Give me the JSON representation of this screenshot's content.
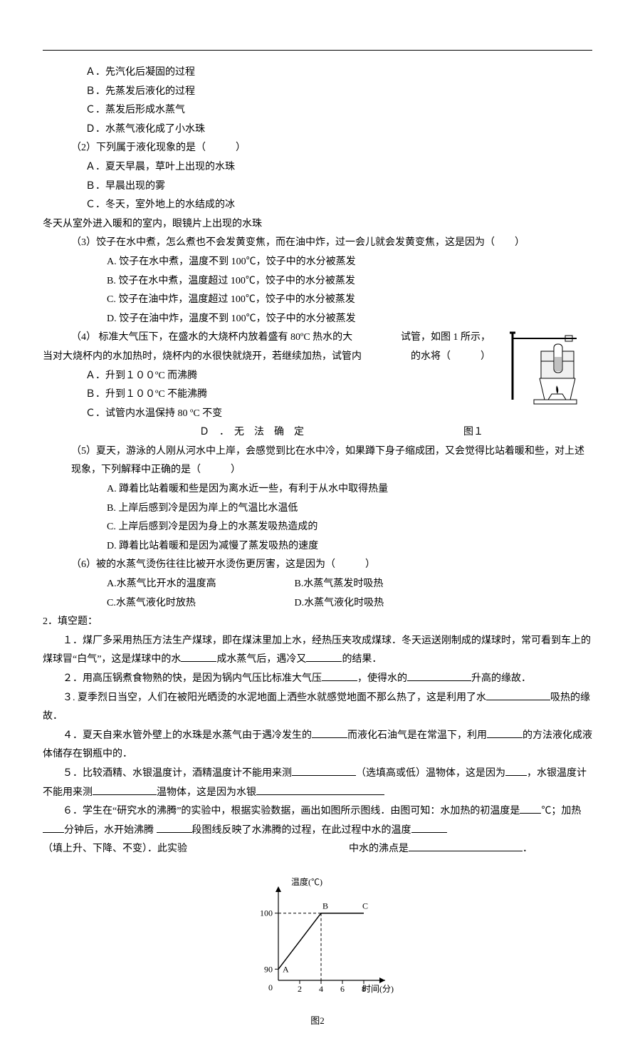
{
  "q1": {
    "options": {
      "a": "Ａ．先汽化后凝固的过程",
      "b": "Ｂ．先蒸发后液化的过程",
      "c": "Ｃ．蒸发后形成水蒸气",
      "d": "Ｄ．水蒸气液化成了小水珠"
    }
  },
  "q2": {
    "stem": "（2）下列属于液化现象的是（　　　）",
    "options": {
      "a": "Ａ．夏天早晨，草叶上出现的水珠",
      "b": "Ｂ．早晨出现的雾",
      "c": "Ｃ．冬天，室外地上的水结成的冰"
    },
    "extra": "冬天从室外进入暖和的室内，眼镜片上出现的水珠"
  },
  "q3": {
    "stem": "（3）饺子在水中煮，怎么煮也不会发黄变焦，而在油中炸，过一会儿就会发黄变焦，这是因为（　　）",
    "options": {
      "a": "A. 饺子在水中煮，温度不到 100℃，饺子中的水分被蒸发",
      "b": "B. 饺子在水中煮，温度超过 100℃，饺子中的水分被蒸发",
      "c": "C. 饺子在油中炸，温度超过 100℃，饺子中的水分被蒸发",
      "d": "D. 饺子在油中炸，温度不到 100℃，饺子中的水分被蒸发"
    }
  },
  "q4": {
    "stem_l1": "（4） 标准大气压下，在盛水的大烧杯内放着盛有 80ºC 热水的大",
    "stem_r1": "试管，如图 1 所示，",
    "stem_l2": "当对大烧杯内的水加热时，烧杯内的水很快就烧开，若继续加热，试管内",
    "stem_r2": "的水将（　　　）",
    "options": {
      "a": "Ａ．升到１００ºC 而沸腾",
      "b": "Ｂ．升到１００ºC 不能沸腾",
      "c": "Ｃ．试管内水温保持 80 ºC 不变",
      "d": "Ｄ　．　无　法　确　定"
    },
    "fig_label": "图１"
  },
  "q5": {
    "stem": "（5）夏天，游泳的人刚从河水中上岸，会感觉到比在水中冷，如果蹲下身子缩成团，又会觉得比站着暖和些，对上述现象，下列解释中正确的是（　　　）",
    "options": {
      "a": "A. 蹲着比站着暖和些是因为离水近一些，有利于从水中取得热量",
      "b": "B. 上岸后感到冷是因为岸上的气温比水温低",
      "c": "C. 上岸后感到冷是因为身上的水蒸发吸热造成的",
      "d": "D. 蹲着比站着暖和是因为减慢了蒸发吸热的速度"
    }
  },
  "q6": {
    "stem": "（6）被的水蒸气烫伤往往比被开水烫伤更厉害，这是因为（　　　）",
    "options": {
      "a": "A.水蒸气比开水的温度高",
      "b": "B.水蒸气蒸发时吸热",
      "c": "C.水蒸气液化时放热",
      "d": "D.水蒸气液化时吸热"
    }
  },
  "fill": {
    "head": "2．填空题：",
    "f1": "１．煤厂多采用热压方法生产煤球，即在煤沫里加上水，经热压夹攻成煤球．冬天运送刚制成的煤球时，常可看到车上的煤球冒“白气”，这是煤球中的水",
    "f1b": "成水蒸气后，遇冷又",
    "f1c": "的结果．",
    "f2": "２．用高压锅煮食物熟的快，是因为锅内气压比标准大气压",
    "f2b": "，使得水的",
    "f2c": "升高的缘故．",
    "f3": "３. 夏季烈日当空，人们在被阳光晒烫的水泥地面上洒些水就感觉地面不那么热了，这是利用了水",
    "f3b": "吸热的缘故．",
    "f4": "４．夏天自来水管外壁上的水珠是水蒸气由于遇冷发生的",
    "f4b": "而液化石油气是在常温下，利用",
    "f4c": "的方法液化成液体储存在钢瓶中的．",
    "f5": "５．比较酒精、水银温度计，酒精温度计不能用来测",
    "f5b": "（选填高或低）温物体，这是因为",
    "f5c": "，水银温度计不能用来测",
    "f5d": "温物体，这是因为水银",
    "f6": "６．学生在“研究水的沸腾”的实验中，根据实验数据，画出如图所示图线．由图可知：水加热的初温度是",
    "f6b": "℃；加热",
    "f6c": "分钟后，水开始沸腾 ",
    "f6d": "段图线反映了水沸腾的过程，在此过程中水的温度",
    "f6e": "（填上升、下降、不变）．此实验",
    "f6f": "中水的沸点是",
    "f6g": "．"
  },
  "chart": {
    "type": "line",
    "xlabel": "时间(分)",
    "ylabel": "温度(℃)",
    "xticks": [
      2,
      4,
      6,
      8
    ],
    "yticks": [
      90,
      100
    ],
    "points": {
      "A": {
        "label": "A",
        "x": 0,
        "y": 90
      },
      "B": {
        "label": "B",
        "x": 4,
        "y": 100
      },
      "C": {
        "label": "C",
        "x": 8,
        "y": 100
      }
    },
    "axis_color": "#000000",
    "line_color": "#000000",
    "dash_color": "#000000",
    "text_color": "#000000",
    "background": "#ffffff",
    "line_width": 1.2,
    "font_size": 12,
    "fig_label": "图2"
  }
}
